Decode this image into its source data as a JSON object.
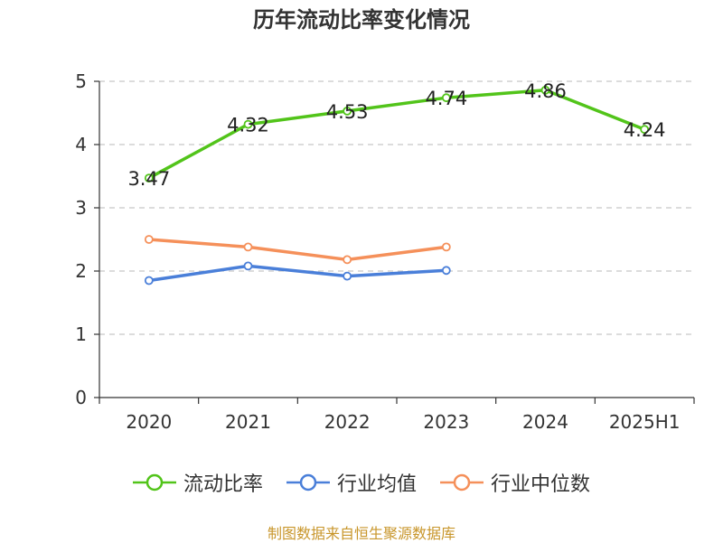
{
  "chart_data": {
    "type": "line",
    "title": "历年流动比率变化情况",
    "categories": [
      "2020",
      "2021",
      "2022",
      "2023",
      "2024",
      "2025H1"
    ],
    "ylim": [
      0,
      5
    ],
    "yticks": [
      "0",
      "1",
      "2",
      "3",
      "4",
      "5"
    ],
    "grid": true,
    "legend_position": "bottom",
    "series": [
      {
        "name": "流动比率",
        "color": "#52c41a",
        "values": [
          3.47,
          4.32,
          4.53,
          4.74,
          4.86,
          4.24
        ],
        "labels": [
          "3.47",
          "4.32",
          "4.53",
          "4.74",
          "4.86",
          "4.24"
        ]
      },
      {
        "name": "行业均值",
        "color": "#4a7fd9",
        "values": [
          1.85,
          2.08,
          1.92,
          2.01,
          null,
          null
        ]
      },
      {
        "name": "行业中位数",
        "color": "#f5905a",
        "values": [
          2.5,
          2.38,
          2.18,
          2.38,
          null,
          null
        ]
      }
    ]
  },
  "source": "制图数据来自恒生聚源数据库"
}
